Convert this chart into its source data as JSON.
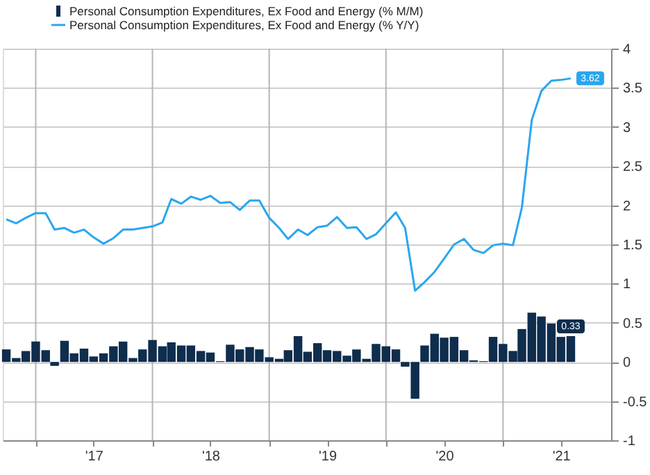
{
  "chart_data": {
    "type": "bar",
    "x": [
      "2016-10",
      "2016-11",
      "2016-12",
      "2017-01",
      "2017-02",
      "2017-03",
      "2017-04",
      "2017-05",
      "2017-06",
      "2017-07",
      "2017-08",
      "2017-09",
      "2017-10",
      "2017-11",
      "2017-12",
      "2018-01",
      "2018-02",
      "2018-03",
      "2018-04",
      "2018-05",
      "2018-06",
      "2018-07",
      "2018-08",
      "2018-09",
      "2018-10",
      "2018-11",
      "2018-12",
      "2019-01",
      "2019-02",
      "2019-03",
      "2019-04",
      "2019-05",
      "2019-06",
      "2019-07",
      "2019-08",
      "2019-09",
      "2019-10",
      "2019-11",
      "2019-12",
      "2020-01",
      "2020-02",
      "2020-03",
      "2020-04",
      "2020-05",
      "2020-06",
      "2020-07",
      "2020-08",
      "2020-09",
      "2020-10",
      "2020-11",
      "2020-12",
      "2021-01",
      "2021-02",
      "2021-03",
      "2021-04",
      "2021-05",
      "2021-06",
      "2021-07",
      "2021-08"
    ],
    "series": [
      {
        "name": "Personal Consumption Expenditures, Ex Food and Energy (% M/M)",
        "color": "#0f2d4d",
        "values": [
          0.16,
          0.05,
          0.14,
          0.26,
          0.15,
          -0.05,
          0.27,
          0.11,
          0.17,
          0.07,
          0.11,
          0.2,
          0.26,
          0.05,
          0.16,
          0.28,
          0.2,
          0.25,
          0.21,
          0.21,
          0.14,
          0.12,
          0.01,
          0.22,
          0.16,
          0.19,
          0.16,
          0.06,
          0.04,
          0.15,
          0.33,
          0.13,
          0.24,
          0.15,
          0.14,
          0.08,
          0.16,
          0.04,
          0.23,
          0.2,
          0.16,
          -0.06,
          -0.47,
          0.21,
          0.36,
          0.31,
          0.32,
          0.15,
          0.02,
          0.01,
          0.32,
          0.23,
          0.14,
          0.42,
          0.63,
          0.58,
          0.49,
          0.32,
          0.33
        ],
        "value_labels": [
          null,
          null,
          null,
          null,
          null,
          null,
          null,
          null,
          null,
          null,
          null,
          null,
          null,
          null,
          null,
          null,
          null,
          null,
          null,
          null,
          null,
          null,
          null,
          null,
          null,
          null,
          null,
          null,
          null,
          null,
          null,
          null,
          null,
          null,
          null,
          null,
          null,
          null,
          null,
          null,
          null,
          null,
          null,
          null,
          null,
          null,
          null,
          null,
          null,
          null,
          null,
          null,
          null,
          null,
          null,
          null,
          null,
          null,
          "0.33"
        ]
      },
      {
        "name": "Personal Consumption Expenditures, Ex Food and Energy (% Y/Y)",
        "type": "line",
        "color": "#2aa6ee",
        "values": [
          1.82,
          1.77,
          1.84,
          1.9,
          1.9,
          1.69,
          1.71,
          1.65,
          1.69,
          1.59,
          1.51,
          1.58,
          1.69,
          1.69,
          1.71,
          1.73,
          1.78,
          2.08,
          2.02,
          2.11,
          2.07,
          2.12,
          2.03,
          2.04,
          1.94,
          2.06,
          2.06,
          1.84,
          1.71,
          1.57,
          1.69,
          1.62,
          1.72,
          1.74,
          1.85,
          1.71,
          1.72,
          1.57,
          1.63,
          1.77,
          1.91,
          1.71,
          0.91,
          1.02,
          1.15,
          1.32,
          1.5,
          1.57,
          1.43,
          1.39,
          1.49,
          1.51,
          1.49,
          1.97,
          3.09,
          3.46,
          3.59,
          3.6,
          3.62
        ],
        "value_labels": [
          null,
          null,
          null,
          null,
          null,
          null,
          null,
          null,
          null,
          null,
          null,
          null,
          null,
          null,
          null,
          null,
          null,
          null,
          null,
          null,
          null,
          null,
          null,
          null,
          null,
          null,
          null,
          null,
          null,
          null,
          null,
          null,
          null,
          null,
          null,
          null,
          null,
          null,
          null,
          null,
          null,
          null,
          null,
          null,
          null,
          null,
          null,
          null,
          null,
          null,
          null,
          null,
          null,
          null,
          null,
          null,
          null,
          null,
          "3.62"
        ]
      }
    ],
    "xlim": [
      "2016-09-20",
      "2021-12-05"
    ],
    "xticks": [
      {
        "value": "2017-01-01",
        "label": null
      },
      {
        "value": "2017-07-01",
        "label": "'17"
      },
      {
        "value": "2018-01-01",
        "label": null
      },
      {
        "value": "2018-07-01",
        "label": "'18"
      },
      {
        "value": "2019-01-01",
        "label": null
      },
      {
        "value": "2019-07-01",
        "label": "'19"
      },
      {
        "value": "2020-01-01",
        "label": null
      },
      {
        "value": "2020-07-01",
        "label": "'20"
      },
      {
        "value": "2021-01-01",
        "label": null
      },
      {
        "value": "2021-07-01",
        "label": "'21"
      }
    ],
    "ylim": [
      -1,
      4
    ],
    "yticks": [
      -1,
      -0.5,
      0,
      0.5,
      1,
      1.5,
      2,
      2.5,
      3,
      3.5,
      4
    ],
    "grid": true,
    "legend": "top left"
  }
}
